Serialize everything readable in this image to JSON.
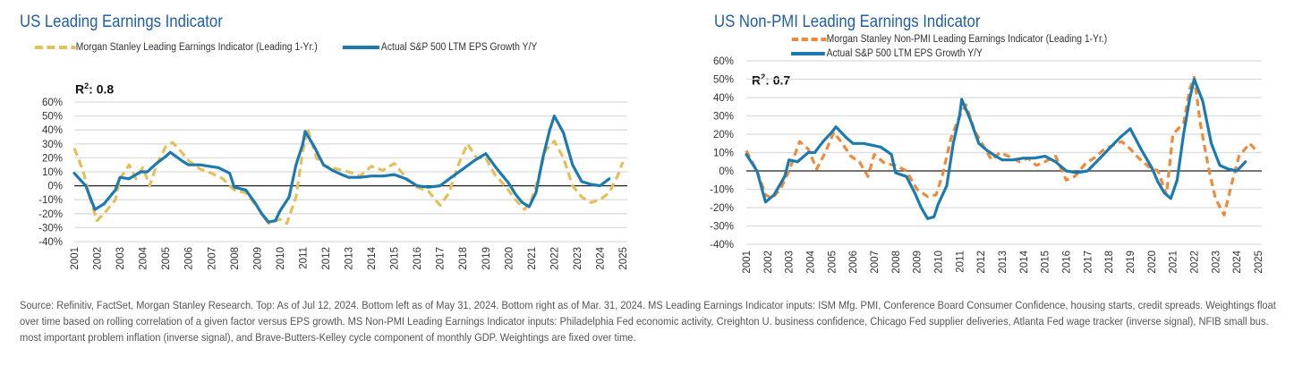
{
  "chart_data": [
    {
      "type": "line",
      "title": "US Leading Earnings Indicator",
      "annotation": "R²: 0.8",
      "r2_label": "R",
      "r2_value": ": 0.8",
      "xlabel": "",
      "ylabel": "",
      "ylim": [
        -40,
        60
      ],
      "xlim": [
        2001,
        2025
      ],
      "yticks": [
        "60%",
        "50%",
        "40%",
        "30%",
        "20%",
        "10%",
        "0%",
        "-10%",
        "-20%",
        "-30%",
        "-40%"
      ],
      "ytick_values": [
        60,
        50,
        40,
        30,
        20,
        10,
        0,
        -10,
        -20,
        -30,
        -40
      ],
      "xticks": [
        "2001",
        "2002",
        "2003",
        "2004",
        "2005",
        "2006",
        "2007",
        "2008",
        "2009",
        "2010",
        "2011",
        "2012",
        "2013",
        "2014",
        "2015",
        "2016",
        "2017",
        "2018",
        "2019",
        "2020",
        "2021",
        "2022",
        "2023",
        "2024",
        "2025"
      ],
      "grid": true,
      "legend_position": "top",
      "series": [
        {
          "name": "Morgan Stanley Leading Earnings Indicator (Leading 1-Yr.)",
          "color": "#e6bf5a",
          "style": "dashed",
          "x": [
            2001.0,
            2001.4,
            2001.7,
            2002.0,
            2002.4,
            2002.8,
            2003.0,
            2003.4,
            2003.7,
            2004.0,
            2004.3,
            2004.6,
            2005.0,
            2005.3,
            2005.7,
            2006.0,
            2006.5,
            2007.0,
            2007.5,
            2008.0,
            2008.5,
            2009.0,
            2009.5,
            2010.0,
            2010.3,
            2010.7,
            2011.0,
            2011.2,
            2011.6,
            2012.0,
            2012.5,
            2013.0,
            2013.5,
            2014.0,
            2014.5,
            2015.0,
            2015.5,
            2016.0,
            2016.5,
            2017.0,
            2017.4,
            2017.8,
            2018.2,
            2018.6,
            2019.0,
            2019.4,
            2019.9,
            2020.3,
            2020.7,
            2021.0,
            2021.3,
            2021.6,
            2022.0,
            2022.4,
            2022.8,
            2023.2,
            2023.6,
            2024.0,
            2024.4,
            2024.8,
            2025.0
          ],
          "values": [
            27,
            10,
            -10,
            -25,
            -18,
            -10,
            5,
            15,
            5,
            13,
            0,
            15,
            28,
            31,
            24,
            18,
            12,
            9,
            5,
            -3,
            -5,
            -15,
            -27,
            -24,
            -27,
            -8,
            25,
            41,
            20,
            14,
            12,
            10,
            7,
            14,
            11,
            16,
            6,
            -1,
            -4,
            -14,
            -5,
            15,
            30,
            20,
            20,
            8,
            -1,
            -10,
            -17,
            -10,
            5,
            25,
            32,
            20,
            0,
            -8,
            -12,
            -10,
            -5,
            8,
            17
          ]
        },
        {
          "name": "Actual S&P 500 LTM EPS Growth Y/Y",
          "color": "#1b7bb0",
          "style": "solid",
          "x": [
            2001.0,
            2001.5,
            2001.9,
            2002.3,
            2002.8,
            2003.0,
            2003.4,
            2003.9,
            2004.2,
            2004.6,
            2005.0,
            2005.2,
            2005.7,
            2006.0,
            2006.5,
            2006.9,
            2007.3,
            2007.8,
            2008.0,
            2008.5,
            2008.9,
            2009.2,
            2009.5,
            2009.8,
            2010.0,
            2010.4,
            2010.7,
            2011.0,
            2011.1,
            2011.5,
            2011.9,
            2012.3,
            2012.7,
            2013.0,
            2013.5,
            2014.0,
            2014.5,
            2015.0,
            2015.5,
            2016.0,
            2016.5,
            2017.0,
            2017.5,
            2018.0,
            2018.5,
            2019.0,
            2019.5,
            2020.0,
            2020.3,
            2020.6,
            2020.9,
            2021.2,
            2021.5,
            2021.8,
            2022.0,
            2022.4,
            2022.8,
            2023.2,
            2023.6,
            2024.0,
            2024.4
          ],
          "values": [
            9,
            0,
            -17,
            -13,
            -3,
            6,
            5,
            10,
            10,
            16,
            21,
            24,
            18,
            15,
            15,
            14,
            13,
            9,
            -1,
            -3,
            -12,
            -20,
            -26,
            -25,
            -18,
            -8,
            15,
            30,
            39,
            28,
            15,
            11,
            8,
            6,
            6,
            7,
            7,
            8,
            5,
            0,
            -1,
            0,
            6,
            12,
            18,
            23,
            12,
            2,
            -6,
            -12,
            -15,
            -5,
            20,
            40,
            50,
            38,
            15,
            3,
            1,
            0,
            5
          ]
        }
      ]
    },
    {
      "type": "line",
      "title": "US Non-PMI Leading Earnings Indicator",
      "annotation": "R²: 0.7",
      "r2_label": "R",
      "r2_value": ": 0.7",
      "xlabel": "",
      "ylabel": "",
      "ylim": [
        -40,
        60
      ],
      "xlim": [
        2001,
        2025
      ],
      "yticks": [
        "60%",
        "50%",
        "40%",
        "30%",
        "20%",
        "10%",
        "0%",
        "-10%",
        "-20%",
        "-30%",
        "-40%"
      ],
      "ytick_values": [
        60,
        50,
        40,
        30,
        20,
        10,
        0,
        -10,
        -20,
        -30,
        -40
      ],
      "xticks": [
        "2001",
        "2002",
        "2003",
        "2004",
        "2005",
        "2006",
        "2007",
        "2008",
        "2009",
        "2010",
        "2011",
        "2012",
        "2013",
        "2014",
        "2015",
        "2016",
        "2017",
        "2018",
        "2019",
        "2020",
        "2021",
        "2022",
        "2023",
        "2024",
        "2025"
      ],
      "grid": true,
      "legend_position": "top",
      "series": [
        {
          "name": "Morgan Stanley Non-PMI Leading Earnings Indicator (Leading 1-Yr.)",
          "color": "#ee8a3a",
          "style": "dashed",
          "x": [
            2001.0,
            2001.5,
            2001.9,
            2002.2,
            2002.6,
            2003.0,
            2003.5,
            2003.9,
            2004.3,
            2004.7,
            2005.1,
            2005.5,
            2005.9,
            2006.3,
            2006.7,
            2007.0,
            2007.5,
            2008.0,
            2008.5,
            2009.0,
            2009.5,
            2009.9,
            2010.2,
            2010.6,
            2011.0,
            2011.3,
            2011.7,
            2012.1,
            2012.5,
            2012.9,
            2013.3,
            2013.8,
            2014.2,
            2014.6,
            2015.0,
            2015.5,
            2016.0,
            2016.4,
            2016.9,
            2017.3,
            2017.8,
            2018.2,
            2018.6,
            2019.0,
            2019.4,
            2019.9,
            2020.3,
            2020.7,
            2021.0,
            2021.5,
            2021.8,
            2022.0,
            2022.3,
            2022.7,
            2023.0,
            2023.4,
            2023.8,
            2024.1,
            2024.6,
            2025.0
          ],
          "values": [
            11,
            0,
            -13,
            -15,
            -10,
            0,
            16,
            12,
            1,
            10,
            21,
            15,
            8,
            5,
            -3,
            9,
            4,
            3,
            0,
            -10,
            -14,
            -13,
            -2,
            18,
            30,
            36,
            22,
            14,
            6,
            10,
            8,
            5,
            7,
            3,
            5,
            8,
            -5,
            -3,
            4,
            7,
            12,
            14,
            16,
            12,
            7,
            2,
            0,
            -13,
            20,
            26,
            45,
            51,
            25,
            0,
            -15,
            -24,
            -5,
            8,
            15,
            10
          ]
        },
        {
          "name": "Actual S&P 500 LTM EPS Growth Y/Y",
          "color": "#1b7bb0",
          "style": "solid",
          "x": [
            2001.0,
            2001.5,
            2001.9,
            2002.3,
            2002.8,
            2003.0,
            2003.4,
            2003.9,
            2004.2,
            2004.6,
            2005.0,
            2005.2,
            2005.7,
            2006.0,
            2006.5,
            2006.9,
            2007.3,
            2007.8,
            2008.0,
            2008.5,
            2008.9,
            2009.2,
            2009.5,
            2009.8,
            2010.0,
            2010.4,
            2010.7,
            2011.0,
            2011.1,
            2011.5,
            2011.9,
            2012.3,
            2012.7,
            2013.0,
            2013.5,
            2014.0,
            2014.5,
            2015.0,
            2015.5,
            2016.0,
            2016.5,
            2017.0,
            2017.5,
            2018.0,
            2018.5,
            2019.0,
            2019.5,
            2020.0,
            2020.3,
            2020.6,
            2020.9,
            2021.2,
            2021.5,
            2021.8,
            2022.0,
            2022.4,
            2022.8,
            2023.2,
            2023.6,
            2024.0,
            2024.4
          ],
          "values": [
            9,
            0,
            -17,
            -13,
            -3,
            6,
            5,
            10,
            10,
            16,
            21,
            24,
            18,
            15,
            15,
            14,
            13,
            9,
            -1,
            -3,
            -12,
            -20,
            -26,
            -25,
            -18,
            -8,
            15,
            30,
            39,
            28,
            15,
            11,
            8,
            6,
            6,
            7,
            7,
            8,
            5,
            0,
            -1,
            0,
            6,
            12,
            18,
            23,
            12,
            2,
            -6,
            -12,
            -15,
            -5,
            20,
            40,
            50,
            38,
            15,
            3,
            1,
            0,
            5
          ]
        }
      ]
    }
  ],
  "footnote": "Source: Refinitiv, FactSet, Morgan Stanley Research. Top: As of Jul 12, 2024. Bottom left as of May 31, 2024. Bottom right as of Mar. 31, 2024. MS Leading Earnings Indicator inputs: ISM Mfg. PMI, Conference Board Consumer Confidence, housing starts, credit spreads. Weightings float over time based on rolling correlation of a given factor versus EPS growth. MS Non-PMI Leading Earnings Indicator inputs: Philadelphia Fed economic activity, Creighton U. business confidence, Chicago Fed supplier deliveries, Atlanta Fed wage tracker (inverse signal), NFIB small bus. most important problem inflation (inverse signal), and Brave-Butters-Kelley cycle component of monthly GDP. Weightings are fixed over time."
}
